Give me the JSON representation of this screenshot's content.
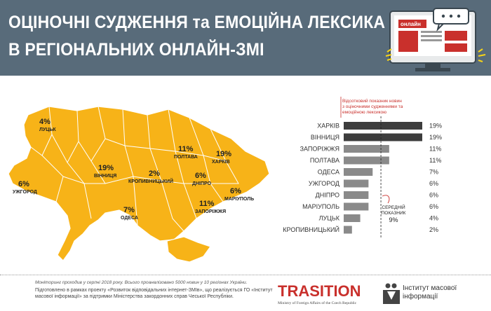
{
  "title": {
    "line1": "ОЦІНОЧНІ СУДЖЕННЯ та ЕМОЦІЙНА ЛЕКСИКА",
    "line2": "В РЕГІОНАЛЬНИХ ОНЛАЙН-ЗМІ"
  },
  "illustration": {
    "screen_word": "онлайн"
  },
  "map": {
    "regions": [
      {
        "value": "4%",
        "city": "ЛУЦЬК"
      },
      {
        "value": "6%",
        "city": "УЖГОРОД"
      },
      {
        "value": "19%",
        "city": "ВІННИЦЯ"
      },
      {
        "value": "2%",
        "city": "КРОПИВНИЦЬКИЙ"
      },
      {
        "value": "11%",
        "city": "ПОЛТАВА"
      },
      {
        "value": "19%",
        "city": "ХАРКІВ"
      },
      {
        "value": "6%",
        "city": "ДНІПРО"
      },
      {
        "value": "6%",
        "city": "МАРІУПОЛЬ"
      },
      {
        "value": "11%",
        "city": "ЗАПОРІЖЖЯ"
      },
      {
        "value": "7%",
        "city": "ОДЕСА"
      }
    ]
  },
  "chart_data": {
    "type": "bar",
    "orientation": "horizontal",
    "title": "Відсотковий показник новин з оціночними судженнями та емоційною лексикою",
    "categories": [
      "ХАРКІВ",
      "ВІННИЦЯ",
      "ЗАПОРІЖЖЯ",
      "ПОЛТАВА",
      "ОДЕСА",
      "УЖГОРОД",
      "ДНІПРО",
      "МАРІУПОЛЬ",
      "ЛУЦЬК",
      "КРОПИВНИЦЬКИЙ"
    ],
    "values": [
      19,
      19,
      11,
      11,
      7,
      6,
      6,
      6,
      4,
      2
    ],
    "value_labels": [
      "19%",
      "19%",
      "11%",
      "11%",
      "7%",
      "6%",
      "6%",
      "6%",
      "4%",
      "2%"
    ],
    "xlim": [
      0,
      19
    ],
    "average": {
      "value": 9,
      "label_line1": "СЕРЕДНІЙ",
      "label_line2": "ПОКАЗНИК",
      "value_label": "9%"
    },
    "colors": {
      "top": "#3d3d3d",
      "rest": "#8a8a8a"
    }
  },
  "footer": {
    "note": "Моніторинг проходив у серпні 2018 року. Всього проаналізовано 5000 новин у 10 регіонах України.",
    "credit": "Підготовлено в рамках проекту «Розвиток відповідальних інтернет-ЗМІв», що реалізується ГО «Інститут масової інформації» за підтримки Міністерства закордонних справ Чеської Республіки.",
    "transition_name": "TRASITION",
    "transition_sub": "Ministry of Foreign Affairs of the Czech Republic",
    "imi_line1": "Інститут масової",
    "imi_line2": "інформації"
  },
  "colors": {
    "header_bg": "#586b7a",
    "map_fill": "#f7b318",
    "map_border": "#ffffff",
    "accent_red": "#c9302c",
    "note_orange": "#c0392b"
  }
}
